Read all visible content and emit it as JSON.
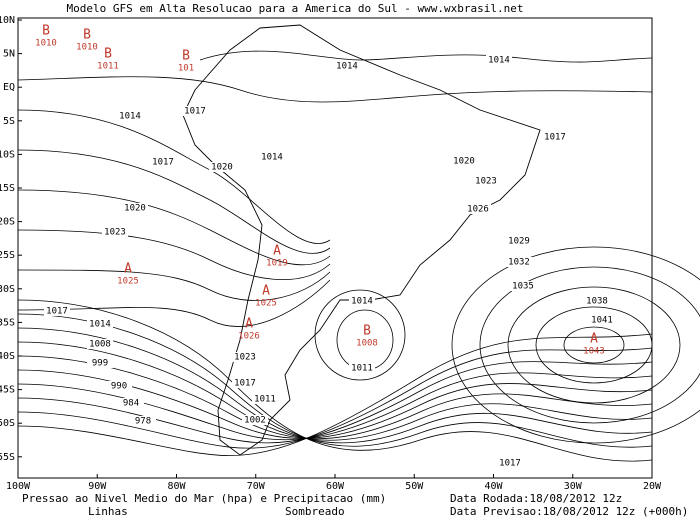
{
  "header": {
    "title": "Modelo GFS em Alta Resolucao para a America do Sul - www.wxbrasil.net"
  },
  "lat_labels": [
    "10N",
    "5N",
    "EQ",
    "5S",
    "10S",
    "15S",
    "20S",
    "25S",
    "30S",
    "35S",
    "40S",
    "45S",
    "50S",
    "55S"
  ],
  "lon_labels": [
    "100W",
    "90W",
    "80W",
    "70W",
    "60W",
    "50W",
    "40W",
    "30W",
    "20W"
  ],
  "isobar_labels": [
    "1014",
    "1014",
    "1014",
    "1017",
    "1017",
    "1020",
    "1014",
    "1020",
    "1023",
    "1020",
    "1026",
    "1023",
    "1029",
    "1032",
    "1035",
    "1038",
    "1041",
    "1017",
    "1014",
    "1008",
    "999",
    "990",
    "984",
    "978",
    "1014",
    "1011",
    "1023",
    "1017",
    "1011",
    "1002",
    "1017",
    "1017"
  ],
  "pressure_centers": [
    {
      "letter": "B",
      "value": "1010"
    },
    {
      "letter": "B",
      "value": "1010"
    },
    {
      "letter": "B",
      "value": "1011"
    },
    {
      "letter": "B",
      "value": "101"
    },
    {
      "letter": "A",
      "value": "1025"
    },
    {
      "letter": "A",
      "value": "1019"
    },
    {
      "letter": "A",
      "value": "1025"
    },
    {
      "letter": "A",
      "value": "1026"
    },
    {
      "letter": "B",
      "value": "1008"
    },
    {
      "letter": "A",
      "value": "1043"
    }
  ],
  "footer": {
    "variable": "Pressao ao Nivel Medio do Mar (hpa) e Precipitacao (mm)",
    "lines": "Linhas",
    "shaded": "Sombreado",
    "run_date": "Data Rodada:18/08/2012 12z",
    "forecast_date": "Data Previsao:18/08/2012 12z (+000h)"
  }
}
